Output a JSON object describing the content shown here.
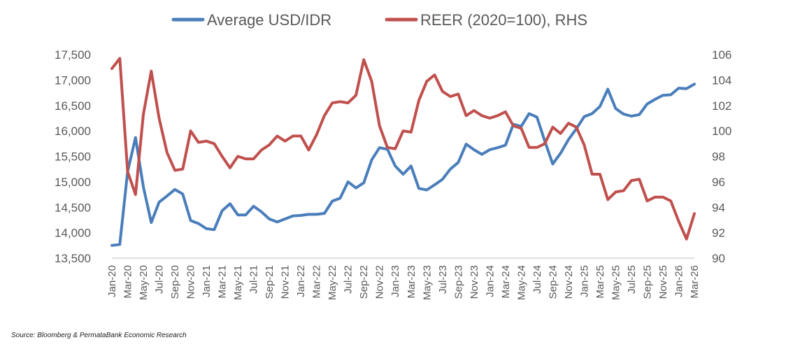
{
  "chart_data": {
    "type": "line",
    "legend_position": "top-center",
    "grid": false,
    "series": [
      {
        "name": "Average USD/IDR",
        "axis": "left",
        "color": "#4a7ebb",
        "values": [
          13750,
          13770,
          15200,
          15870,
          14900,
          14200,
          14600,
          14720,
          14850,
          14760,
          14240,
          14180,
          14080,
          14060,
          14430,
          14570,
          14350,
          14350,
          14520,
          14410,
          14270,
          14210,
          14270,
          14330,
          14340,
          14360,
          14360,
          14380,
          14620,
          14680,
          15000,
          14880,
          14980,
          15430,
          15670,
          15640,
          15310,
          15150,
          15310,
          14870,
          14840,
          14940,
          15050,
          15250,
          15380,
          15740,
          15630,
          15540,
          15630,
          15670,
          15720,
          16130,
          16090,
          16340,
          16270,
          15800,
          15350,
          15560,
          15830,
          16040,
          16280,
          16340,
          16480,
          16820,
          16440,
          16330,
          16290,
          16320,
          16530,
          16620,
          16700,
          16710,
          16840,
          16830,
          16920
        ]
      },
      {
        "name": "REER (2020=100), RHS",
        "axis": "right",
        "color": "#c0504d",
        "values": [
          104.9,
          105.7,
          96.8,
          95.0,
          101.3,
          104.7,
          101.0,
          98.3,
          96.9,
          97.0,
          100.0,
          99.1,
          99.2,
          99.0,
          98.0,
          97.1,
          98.0,
          97.8,
          97.8,
          98.5,
          98.9,
          99.6,
          99.2,
          99.6,
          99.6,
          98.5,
          99.7,
          101.2,
          102.2,
          102.3,
          102.2,
          102.8,
          105.6,
          103.9,
          100.4,
          98.7,
          98.6,
          100.0,
          99.9,
          102.4,
          103.9,
          104.4,
          103.1,
          102.7,
          102.9,
          101.2,
          101.6,
          101.2,
          101.0,
          101.2,
          101.5,
          100.4,
          100.2,
          98.7,
          98.7,
          99.0,
          100.3,
          99.8,
          100.6,
          100.3,
          98.9,
          96.6,
          96.6,
          94.6,
          95.2,
          95.3,
          96.1,
          96.2,
          94.5,
          94.8,
          94.8,
          94.5,
          92.9,
          91.5,
          93.5
        ]
      }
    ],
    "x": [
      "Jan-20",
      "Feb-20",
      "Mar-20",
      "Apr-20",
      "May-20",
      "Jun-20",
      "Jul-20",
      "Aug-20",
      "Sep-20",
      "Oct-20",
      "Nov-20",
      "Dec-20",
      "Jan-21",
      "Feb-21",
      "Mar-21",
      "Apr-21",
      "May-21",
      "Jun-21",
      "Jul-21",
      "Aug-21",
      "Sep-21",
      "Oct-21",
      "Nov-21",
      "Dec-21",
      "Jan-22",
      "Feb-22",
      "Mar-22",
      "Apr-22",
      "May-22",
      "Jun-22",
      "Jul-22",
      "Aug-22",
      "Sep-22",
      "Oct-22",
      "Nov-22",
      "Dec-22",
      "Jan-23",
      "Feb-23",
      "Mar-23",
      "Apr-23",
      "May-23",
      "Jun-23",
      "Jul-23",
      "Aug-23",
      "Sep-23",
      "Oct-23",
      "Nov-23",
      "Dec-23",
      "Jan-24",
      "Feb-24",
      "Mar-24",
      "Apr-24",
      "May-24",
      "Jun-24",
      "Jul-24",
      "Aug-24",
      "Sep-24",
      "Oct-24",
      "Nov-24",
      "Dec-24",
      "Jan-25",
      "Feb-25",
      "Mar-25",
      "Apr-25",
      "May-25",
      "Jun-25",
      "Jul-25",
      "Aug-25",
      "Sep-25",
      "Oct-25",
      "Nov-25",
      "Dec-25",
      "Jan-26",
      "Feb-26",
      "Mar-26"
    ],
    "x_tick_labels": [
      "Jan-20",
      "Mar-20",
      "May-20",
      "Jul-20",
      "Sep-20",
      "Nov-20",
      "Jan-21",
      "Mar-21",
      "May-21",
      "Jul-21",
      "Sep-21",
      "Nov-21",
      "Jan-22",
      "Mar-22",
      "May-22",
      "Jul-22",
      "Sep-22",
      "Nov-22",
      "Jan-23",
      "Mar-23",
      "May-23",
      "Jul-23",
      "Sep-23",
      "Nov-23",
      "Jan-24",
      "Mar-24",
      "May-24",
      "Jul-24",
      "Sep-24",
      "Nov-24",
      "Jan-25",
      "Mar-25",
      "May-25",
      "Jul-25",
      "Sep-25",
      "Nov-25",
      "Jan-26",
      "Mar-26"
    ],
    "y_left": {
      "range": [
        13500,
        17500
      ],
      "ticks": [
        13500,
        14000,
        14500,
        15000,
        15500,
        16000,
        16500,
        17000,
        17500
      ],
      "tick_labels": [
        "13,500",
        "14,000",
        "14,500",
        "15,000",
        "15,500",
        "16,000",
        "16,500",
        "17,000",
        "17,500"
      ]
    },
    "y_right": {
      "range": [
        90,
        106
      ],
      "ticks": [
        90,
        92,
        94,
        96,
        98,
        100,
        102,
        104,
        106
      ],
      "tick_labels": [
        "90",
        "92",
        "94",
        "96",
        "98",
        "100",
        "102",
        "104",
        "106"
      ]
    },
    "source": "Source: Bloomberg & PermataBank Economic Research"
  }
}
